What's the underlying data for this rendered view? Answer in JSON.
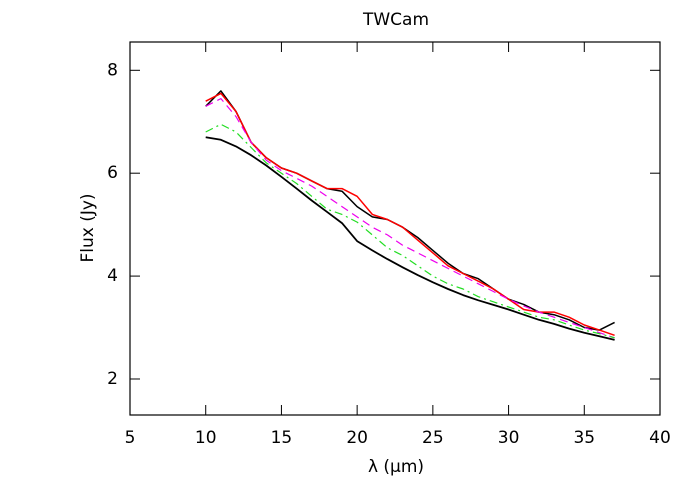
{
  "chart_data": {
    "type": "line",
    "title": "TWCam",
    "x_label": "λ (μm)",
    "y_label": "Flux (Jy)",
    "x": [
      10,
      11,
      12,
      13,
      14,
      15,
      16,
      17,
      18,
      19,
      20,
      21,
      22,
      23,
      24,
      25,
      26,
      27,
      28,
      29,
      30,
      31,
      32,
      33,
      34,
      35,
      36,
      37
    ],
    "series": [
      {
        "color": "#000000",
        "dash": "solid",
        "width": 1.5,
        "values": [
          7.3,
          7.6,
          7.2,
          6.6,
          6.3,
          6.1,
          6.0,
          5.85,
          5.7,
          5.65,
          5.35,
          5.15,
          5.1,
          4.95,
          4.75,
          4.5,
          4.25,
          4.05,
          3.95,
          3.75,
          3.55,
          3.45,
          3.3,
          3.25,
          3.15,
          3.0,
          2.95,
          3.1
        ]
      },
      {
        "color": "#ff0000",
        "dash": "solid",
        "width": 1.5,
        "values": [
          7.4,
          7.55,
          7.2,
          6.6,
          6.3,
          6.1,
          6.0,
          5.85,
          5.7,
          5.7,
          5.55,
          5.2,
          5.1,
          4.95,
          4.7,
          4.45,
          4.2,
          4.05,
          3.9,
          3.75,
          3.55,
          3.35,
          3.3,
          3.3,
          3.2,
          3.05,
          2.95,
          2.85
        ]
      },
      {
        "color": "#ee00ee",
        "dash": "dashed",
        "width": 1.2,
        "values": [
          7.3,
          7.45,
          7.1,
          6.6,
          6.25,
          6.05,
          5.9,
          5.75,
          5.55,
          5.35,
          5.15,
          4.95,
          4.8,
          4.6,
          4.45,
          4.3,
          4.15,
          4.0,
          3.85,
          3.7,
          3.55,
          3.42,
          3.3,
          3.2,
          3.1,
          3.0,
          2.9,
          2.8
        ]
      },
      {
        "color": "#22dd22",
        "dash": "dashdot",
        "width": 1.2,
        "values": [
          6.8,
          6.95,
          6.8,
          6.5,
          6.2,
          6.0,
          5.8,
          5.55,
          5.3,
          5.2,
          5.05,
          4.8,
          4.55,
          4.4,
          4.2,
          4.0,
          3.85,
          3.75,
          3.6,
          3.5,
          3.4,
          3.3,
          3.2,
          3.15,
          3.05,
          2.95,
          2.88,
          2.8
        ]
      },
      {
        "color": "#000000",
        "dash": "solid",
        "width": 1.8,
        "values": [
          6.7,
          6.65,
          6.52,
          6.35,
          6.15,
          5.93,
          5.7,
          5.47,
          5.25,
          5.03,
          4.68,
          4.5,
          4.33,
          4.17,
          4.02,
          3.88,
          3.75,
          3.63,
          3.53,
          3.44,
          3.35,
          3.25,
          3.15,
          3.07,
          2.98,
          2.9,
          2.83,
          2.76
        ]
      }
    ],
    "xlim": [
      5,
      40
    ],
    "xticks": [
      5,
      10,
      15,
      20,
      25,
      30,
      35,
      40
    ],
    "ylim": [
      1.3,
      8.55
    ],
    "yticks": [
      2,
      4,
      6,
      8
    ]
  }
}
